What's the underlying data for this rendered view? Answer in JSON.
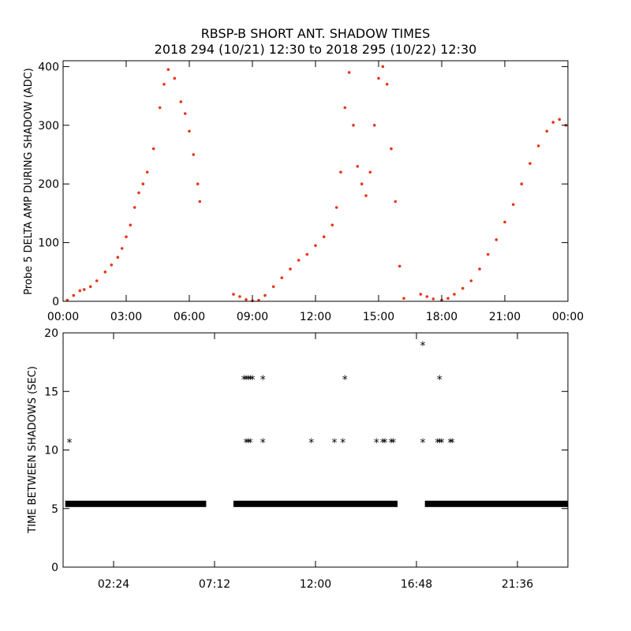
{
  "title": "RBSP-B SHORT ANT. SHADOW TIMES",
  "subtitle": "2018 294 (10/21) 12:30 to 2018 295 (10/22) 12:30",
  "chart_data": [
    {
      "type": "scatter",
      "ylabel": "Probe 5 DELTA AMP DURING SHADOW (ADC)",
      "xlim_hours": [
        0,
        24
      ],
      "ylim": [
        0,
        410
      ],
      "x_tick_hours": [
        0,
        3,
        6,
        9,
        12,
        15,
        18,
        21,
        24
      ],
      "x_tick_labels": [
        "00:00",
        "03:00",
        "06:00",
        "09:00",
        "12:00",
        "15:00",
        "18:00",
        "21:00",
        "00:00"
      ],
      "y_ticks": [
        0,
        100,
        200,
        300,
        400
      ],
      "marker_color": "#e8351a",
      "series": [
        {
          "x_hours": [
            0.2,
            0.5,
            0.8,
            1.0,
            1.3,
            1.6,
            2.0,
            2.3,
            2.6,
            2.8,
            3.0,
            3.2,
            3.4,
            3.6,
            3.8,
            4.0,
            4.3,
            4.6,
            4.8,
            5.0,
            5.3,
            5.6,
            5.8,
            6.0,
            6.2,
            6.4,
            6.5
          ],
          "y": [
            2,
            10,
            18,
            20,
            25,
            35,
            50,
            62,
            75,
            90,
            110,
            130,
            160,
            185,
            200,
            220,
            260,
            330,
            370,
            395,
            380,
            340,
            320,
            290,
            250,
            200,
            170
          ]
        },
        {
          "x_hours": [
            8.1,
            8.4,
            8.7,
            9.0,
            9.3,
            9.6,
            10.0,
            10.4,
            10.8,
            11.2,
            11.6,
            12.0,
            12.4,
            12.8,
            13.0,
            13.2,
            13.4,
            13.6,
            13.8,
            14.0,
            14.2,
            14.4,
            14.6,
            14.8,
            15.0,
            15.2,
            15.4,
            15.6,
            15.8,
            16.0,
            16.2
          ],
          "y": [
            12,
            8,
            3,
            1,
            2,
            10,
            25,
            40,
            55,
            70,
            80,
            95,
            110,
            130,
            160,
            220,
            330,
            390,
            300,
            230,
            200,
            180,
            220,
            300,
            380,
            400,
            370,
            260,
            170,
            60,
            5
          ]
        },
        {
          "x_hours": [
            17.0,
            17.3,
            17.6,
            18.0,
            18.3,
            18.6,
            19.0,
            19.4,
            19.8,
            20.2,
            20.6,
            21.0,
            21.4,
            21.8,
            22.2,
            22.6,
            23.0,
            23.3,
            23.6,
            23.9
          ],
          "y": [
            12,
            8,
            4,
            2,
            5,
            12,
            22,
            35,
            55,
            80,
            105,
            135,
            165,
            200,
            235,
            265,
            290,
            305,
            310,
            300
          ]
        }
      ]
    },
    {
      "type": "scatter",
      "ylabel": "TIME BETWEEN SHADOWS (SEC)",
      "xlim_hours": [
        0,
        24
      ],
      "ylim": [
        0,
        20
      ],
      "x_tick_hours": [
        2.4,
        7.2,
        12.0,
        16.8,
        21.6
      ],
      "x_tick_labels": [
        "02:24",
        "07:12",
        "12:00",
        "16:48",
        "21:36"
      ],
      "y_ticks": [
        0,
        5,
        10,
        15,
        20
      ],
      "marker": "*",
      "marker_color": "#000000",
      "baseline": {
        "y": 5.4,
        "ranges_hours": [
          [
            0.1,
            6.8
          ],
          [
            8.1,
            15.9
          ],
          [
            17.2,
            24.0
          ]
        ]
      },
      "points": {
        "x_hours": [
          0.3,
          8.6,
          8.7,
          8.8,
          8.9,
          9.0,
          9.5,
          8.7,
          8.8,
          8.9,
          9.5,
          11.8,
          12.9,
          13.3,
          13.4,
          14.9,
          15.2,
          15.3,
          15.6,
          15.7,
          17.1,
          17.1,
          17.8,
          17.9,
          18.0,
          18.4,
          18.5,
          17.9
        ],
        "y": [
          10.7,
          16.1,
          16.1,
          16.1,
          16.1,
          16.1,
          16.1,
          10.7,
          10.7,
          10.7,
          10.7,
          10.7,
          10.7,
          10.7,
          16.1,
          10.7,
          10.7,
          10.7,
          10.7,
          10.7,
          19.0,
          10.7,
          10.7,
          10.7,
          10.7,
          10.7,
          10.7,
          16.1
        ]
      }
    }
  ]
}
